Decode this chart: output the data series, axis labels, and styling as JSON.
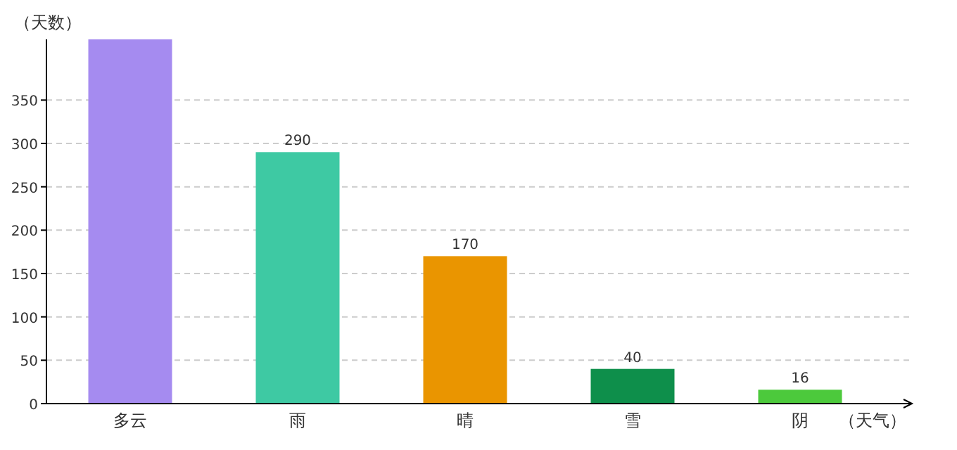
{
  "chart_data": {
    "type": "bar",
    "xlabel": "（天气）",
    "ylabel": "（天数）",
    "categories": [
      "多云",
      "雨",
      "晴",
      "雪",
      "阴"
    ],
    "values": [
      420,
      290,
      170,
      40,
      16
    ],
    "colors": [
      "#a58bf0",
      "#3ec9a3",
      "#ea9500",
      "#0e8f4b",
      "#4cc93c"
    ],
    "value_labels": [
      null,
      "290",
      "170",
      "40",
      "16"
    ],
    "ylim": [
      0,
      420
    ],
    "yticks": [
      0,
      50,
      100,
      150,
      200,
      250,
      300,
      350
    ],
    "grid": "y"
  }
}
